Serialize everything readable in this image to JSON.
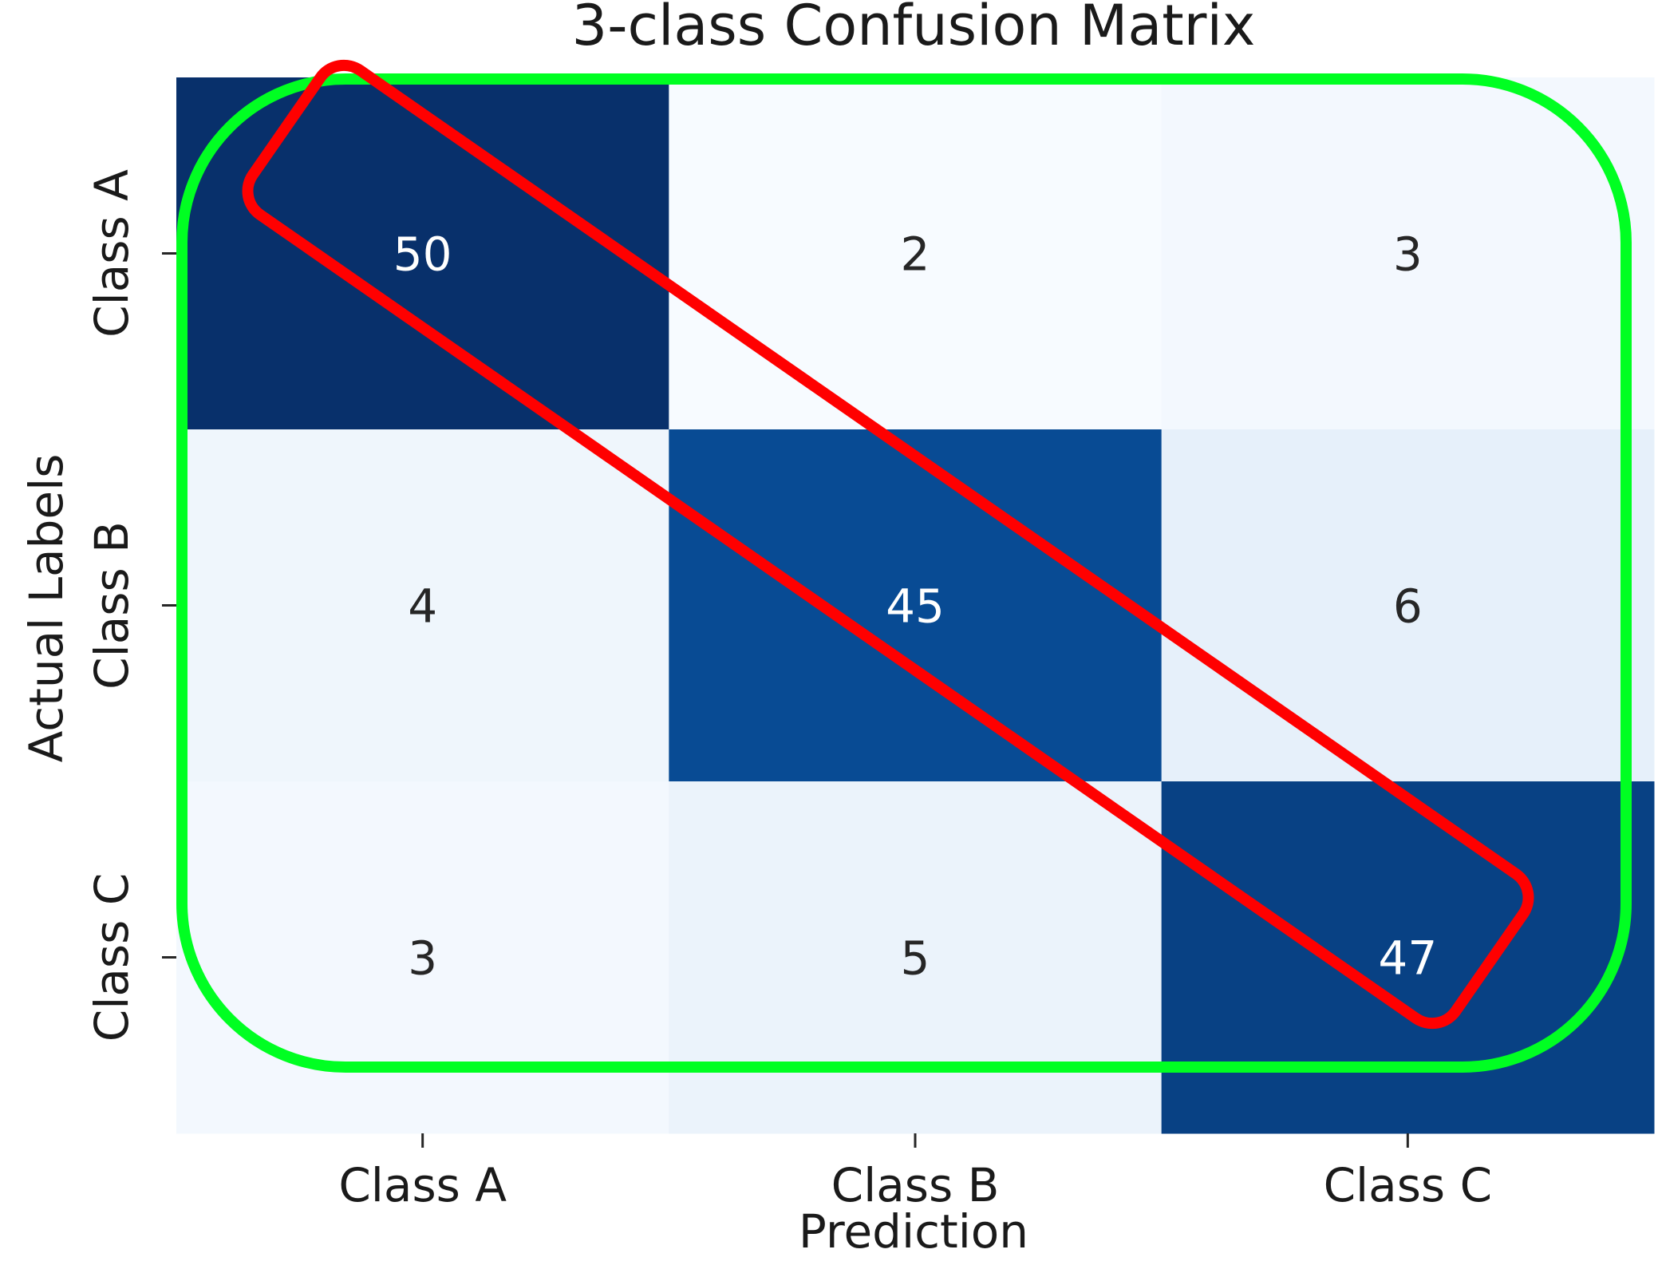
{
  "chart_data": {
    "type": "heatmap",
    "title": "3-class Confusion Matrix",
    "xlabel": "Prediction",
    "ylabel": "Actual Labels",
    "x_categories": [
      "Class A",
      "Class B",
      "Class C"
    ],
    "y_categories": [
      "Class A",
      "Class B",
      "Class C"
    ],
    "values": [
      [
        50,
        2,
        3
      ],
      [
        4,
        45,
        6
      ],
      [
        3,
        5,
        47
      ]
    ],
    "colormap": "Blues",
    "colorbar": false,
    "vmin": 2,
    "vmax": 50,
    "annotations": [
      {
        "kind": "rounded-rectangle",
        "color": "#00ff22",
        "encloses": "all cells"
      },
      {
        "kind": "rounded-rectangle",
        "color": "#ff0000",
        "encloses": "diagonal cells"
      }
    ]
  }
}
